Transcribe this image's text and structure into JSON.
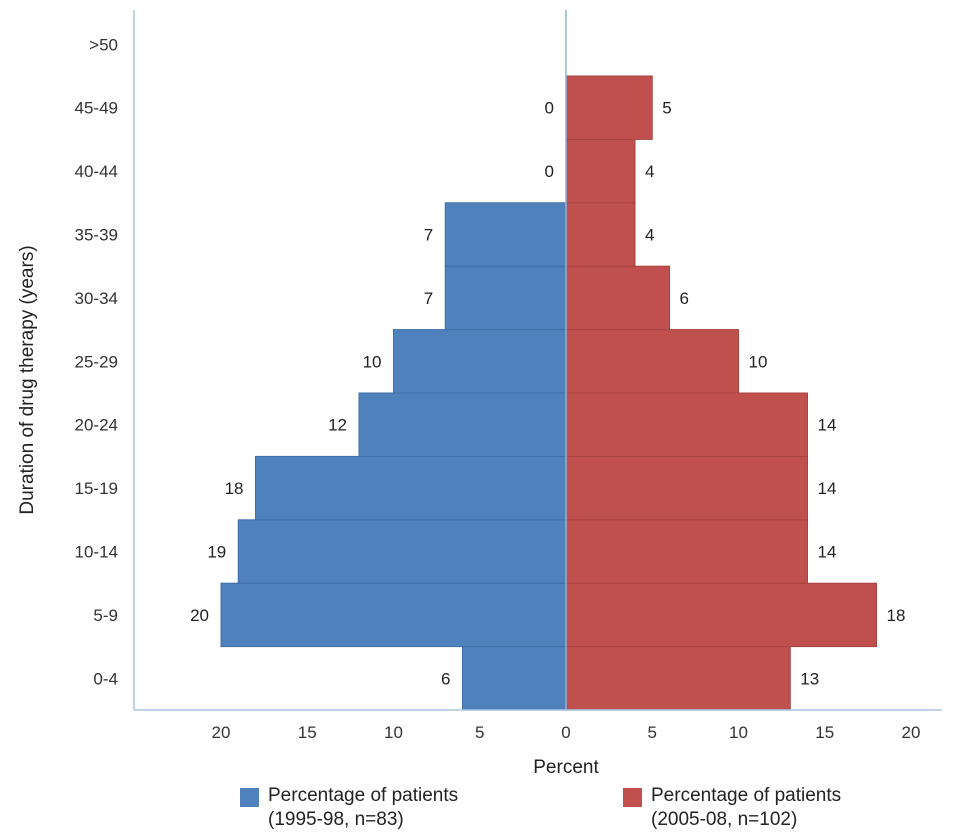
{
  "chart_data": {
    "type": "bar",
    "orientation": "horizontal",
    "layout": "population-pyramid",
    "categories": [
      "0-4",
      "5-9",
      "10-14",
      "15-19",
      "20-24",
      "25-29",
      "30-34",
      "35-39",
      "40-44",
      "45-49",
      ">50"
    ],
    "series": [
      {
        "name": "Percentage of patients (1995-98, n=83)",
        "side": "left",
        "color": "#4f81bd",
        "values": [
          6,
          20,
          19,
          18,
          12,
          10,
          7,
          7,
          0,
          0,
          null
        ],
        "labels": [
          "6",
          "20",
          "19",
          "18",
          "12",
          "10",
          "7",
          "7",
          "0",
          "0",
          ""
        ]
      },
      {
        "name": "Percentage of patients (2005-08, n=102)",
        "side": "right",
        "color": "#c0504d",
        "values": [
          13,
          18,
          14,
          14,
          14,
          10,
          6,
          4,
          4,
          5,
          null
        ],
        "labels": [
          "13",
          "18",
          "14",
          "14",
          "14",
          "10",
          "6",
          "4",
          "4",
          "5",
          ""
        ]
      }
    ],
    "xlabel": "Percent",
    "ylabel": "Duration of drug therapy (years)",
    "xlim": [
      -25,
      20
    ],
    "xticks": [
      -20,
      -15,
      -10,
      -5,
      0,
      5,
      10,
      15,
      20
    ],
    "xtick_labels": [
      "20",
      "15",
      "10",
      "5",
      "0",
      "5",
      "10",
      "15",
      "20"
    ],
    "grid": false,
    "legend_position": "bottom"
  },
  "legend": {
    "left": {
      "line1": "Percentage of patients",
      "line2": "(1995-98, n=83)"
    },
    "right": {
      "line1": "Percentage of patients",
      "line2": "(2005-08, n=102)"
    }
  }
}
